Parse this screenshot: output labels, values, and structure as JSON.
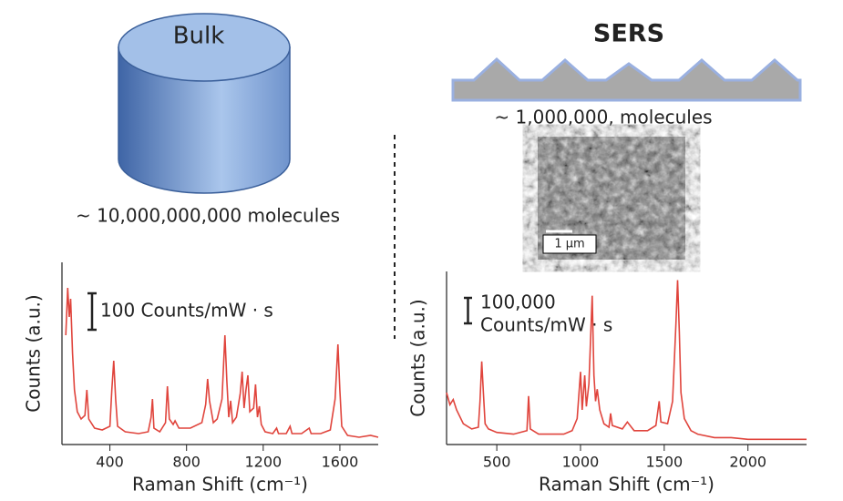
{
  "chart_data": [
    {
      "type": "line",
      "title": "Bulk",
      "annotations": [
        "~ 10,000,000,000 molecules",
        "100 Counts/mW · s"
      ],
      "xlabel": "Raman Shift (cm⁻¹)",
      "ylabel": "Counts (a.u.)",
      "color": "#e0443c",
      "xlim": [
        150,
        1800
      ],
      "ylim": [
        0,
        100
      ],
      "xticks": [
        400,
        800,
        1200,
        1600
      ],
      "x": [
        170,
        180,
        188,
        195,
        205,
        215,
        230,
        250,
        270,
        280,
        290,
        320,
        360,
        400,
        410,
        420,
        430,
        440,
        480,
        550,
        600,
        615,
        622,
        630,
        660,
        690,
        700,
        710,
        730,
        740,
        760,
        820,
        880,
        900,
        910,
        920,
        940,
        960,
        985,
        1000,
        1010,
        1020,
        1030,
        1040,
        1060,
        1080,
        1090,
        1100,
        1110,
        1120,
        1130,
        1150,
        1160,
        1170,
        1180,
        1190,
        1210,
        1250,
        1270,
        1280,
        1320,
        1340,
        1350,
        1400,
        1440,
        1450,
        1500,
        1550,
        1575,
        1590,
        1600,
        1610,
        1640,
        1700,
        1760,
        1800
      ],
      "values": [
        60,
        86,
        70,
        80,
        50,
        30,
        18,
        14,
        16,
        30,
        14,
        9,
        8,
        10,
        30,
        46,
        25,
        10,
        7,
        6,
        7,
        15,
        25,
        9,
        7,
        12,
        32,
        14,
        11,
        13,
        9,
        9,
        12,
        22,
        36,
        24,
        12,
        14,
        25,
        60,
        35,
        15,
        24,
        12,
        15,
        28,
        40,
        20,
        30,
        38,
        18,
        20,
        33,
        15,
        21,
        11,
        7,
        6,
        9,
        6,
        6,
        10,
        6,
        6,
        9,
        6,
        6,
        8,
        25,
        55,
        30,
        10,
        5,
        4,
        5,
        4
      ]
    },
    {
      "type": "line",
      "title": "SERS",
      "annotations": [
        "~ 1,000,000, molecules",
        "1 µm",
        "100,000",
        "Counts/mW · s"
      ],
      "xlabel": "Raman Shift (cm⁻¹)",
      "ylabel": "Counts (a.u.)",
      "color": "#e0443c",
      "xlim": [
        200,
        2350
      ],
      "ylim": [
        0,
        100
      ],
      "xticks": [
        500,
        1000,
        1500,
        2000
      ],
      "x": [
        200,
        220,
        240,
        260,
        300,
        350,
        390,
        400,
        410,
        420,
        430,
        450,
        500,
        600,
        680,
        690,
        700,
        750,
        900,
        950,
        980,
        1000,
        1010,
        1025,
        1035,
        1050,
        1070,
        1080,
        1090,
        1100,
        1115,
        1140,
        1170,
        1180,
        1190,
        1250,
        1280,
        1320,
        1400,
        1450,
        1470,
        1480,
        1520,
        1550,
        1570,
        1580,
        1590,
        1600,
        1620,
        1660,
        1700,
        1800,
        1900,
        2000,
        2200,
        2350
      ],
      "values": [
        30,
        23,
        26,
        20,
        12,
        9,
        10,
        25,
        48,
        30,
        12,
        9,
        7,
        6,
        8,
        28,
        9,
        6,
        6,
        8,
        15,
        42,
        20,
        40,
        22,
        35,
        86,
        40,
        25,
        32,
        20,
        12,
        10,
        18,
        11,
        9,
        13,
        8,
        8,
        11,
        25,
        13,
        12,
        25,
        70,
        95,
        65,
        30,
        15,
        8,
        6,
        4,
        4,
        3,
        3,
        3
      ]
    }
  ]
}
